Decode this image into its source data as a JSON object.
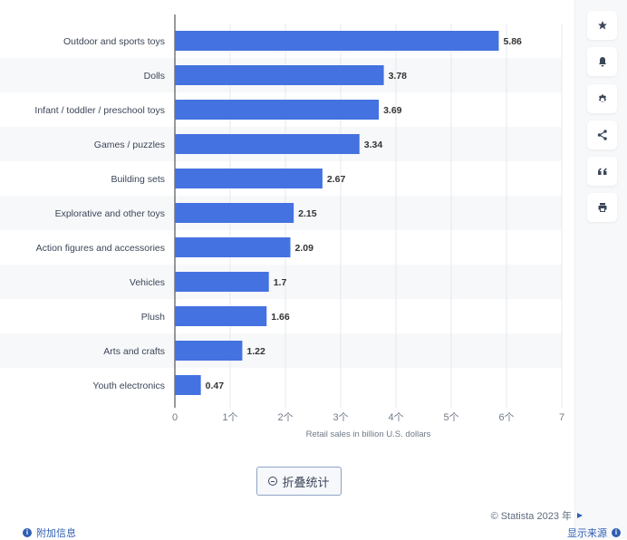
{
  "chart_data": {
    "type": "bar",
    "orientation": "horizontal",
    "categories": [
      "Outdoor and sports toys",
      "Dolls",
      "Infant / toddler / preschool toys",
      "Games / puzzles",
      "Building sets",
      "Explorative and other toys",
      "Action figures and accessories",
      "Vehicles",
      "Plush",
      "Arts and crafts",
      "Youth electronics"
    ],
    "values": [
      5.86,
      3.78,
      3.69,
      3.34,
      2.67,
      2.15,
      2.09,
      1.7,
      1.66,
      1.22,
      0.47
    ],
    "data_labels": [
      "5.86",
      "3.78",
      "3.69",
      "3.34",
      "2.67",
      "2.15",
      "2.09",
      "1.7",
      "1.66",
      "1.22",
      "0.47"
    ],
    "xlabel": "Retail sales in billion U.S. dollars",
    "xlim": [
      0,
      7
    ],
    "xticks": [
      0,
      1,
      2,
      3,
      4,
      5,
      6,
      7
    ],
    "xtick_labels": [
      "0",
      "1个",
      "2个",
      "3个",
      "4个",
      "5个",
      "6个",
      "7"
    ],
    "grid": true,
    "bar_color": "#4472e0",
    "stripe_color": "#f7f8fa"
  },
  "sidebar": {
    "buttons": [
      {
        "name": "favorite",
        "icon": "star-icon"
      },
      {
        "name": "notify",
        "icon": "bell-icon"
      },
      {
        "name": "settings",
        "icon": "gear-icon"
      },
      {
        "name": "share",
        "icon": "share-icon"
      },
      {
        "name": "cite",
        "icon": "quote-icon"
      },
      {
        "name": "print",
        "icon": "printer-icon"
      }
    ]
  },
  "footer": {
    "collapse_label": "折叠统计",
    "copyright": "© Statista 2023 年",
    "additional_info": "附加信息",
    "show_source": "显示来源",
    "accent": "#2f5fb3"
  }
}
